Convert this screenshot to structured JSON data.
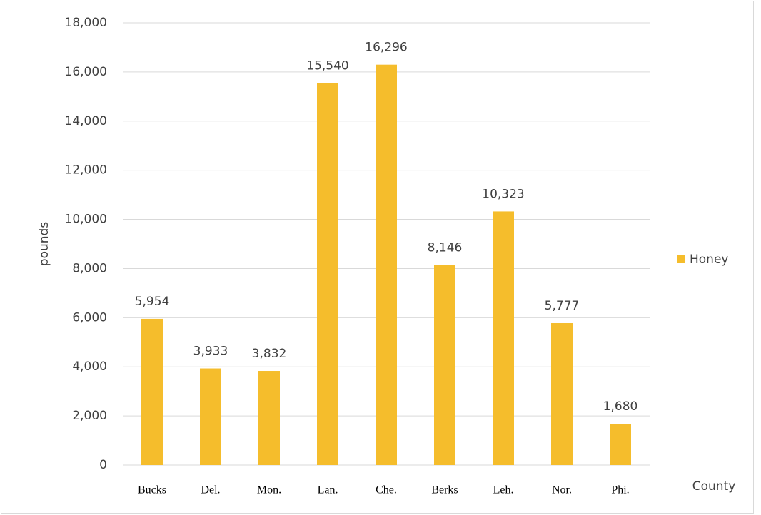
{
  "chart_data": {
    "type": "bar",
    "x_label": "County",
    "y_label": "pounds",
    "categories": [
      "Bucks",
      "Del.",
      "Mon.",
      "Lan.",
      "Che.",
      "Berks",
      "Leh.",
      "Nor.",
      "Phi."
    ],
    "series": [
      {
        "name": "Honey",
        "color": "#f5bd2c",
        "values": [
          5954,
          3933,
          3832,
          15540,
          16296,
          8146,
          10323,
          5777,
          1680
        ],
        "value_labels": [
          "5,954",
          "3,933",
          "3,832",
          "15,540",
          "16,296",
          "8,146",
          "10,323",
          "5,777",
          "1,680"
        ]
      }
    ],
    "ylim": [
      0,
      18000
    ],
    "yticks": [
      0,
      {
        "value": 2000,
        "label": "2,000"
      },
      {
        "value": 4000,
        "label": "4,000"
      },
      {
        "value": 6000,
        "label": "6,000"
      },
      {
        "value": 8000,
        "label": "8,000"
      },
      {
        "value": 10000,
        "label": "10,000"
      },
      {
        "value": 12000,
        "label": "12,000"
      },
      {
        "value": 14000,
        "label": "14,000"
      },
      {
        "value": 16000,
        "label": "16,000"
      },
      {
        "value": 18000,
        "label": "18,000"
      }
    ],
    "grid": true,
    "legend": "right"
  }
}
